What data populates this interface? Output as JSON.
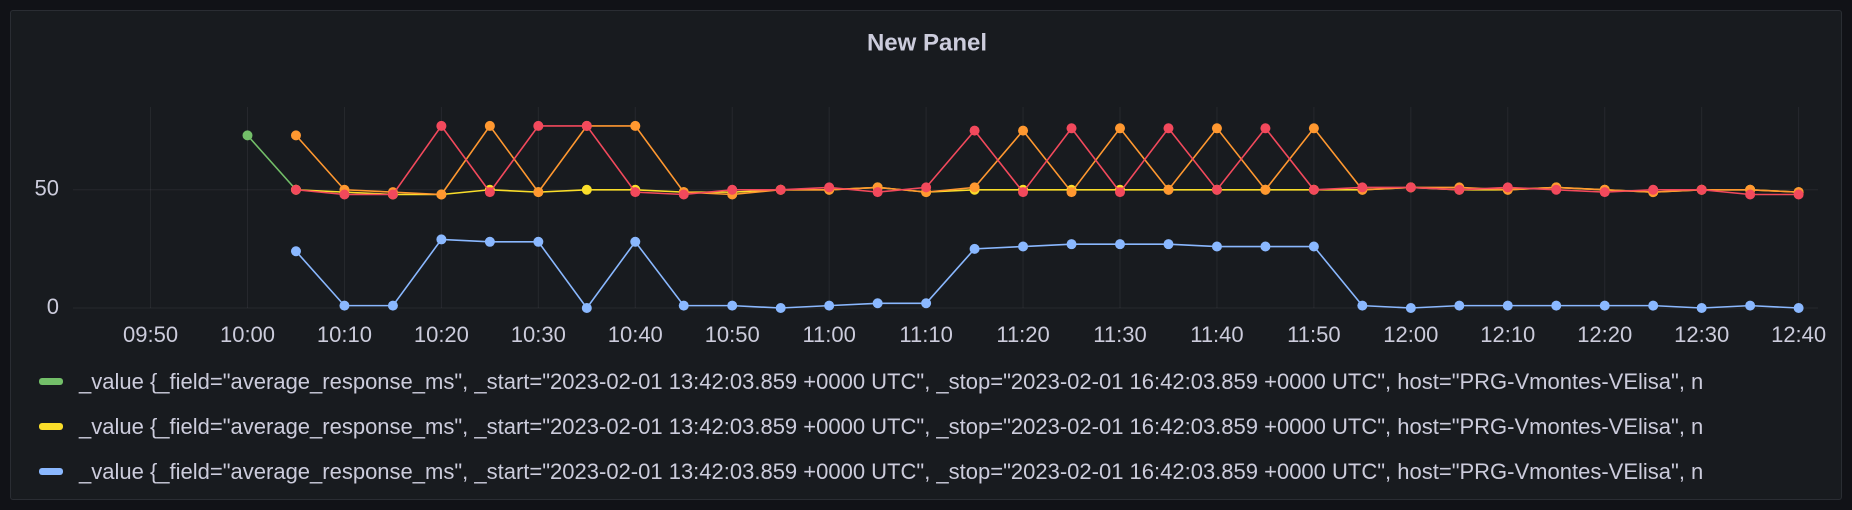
{
  "chart_data": {
    "type": "line",
    "title": "New Panel",
    "x": [
      "10:00",
      "10:05",
      "10:10",
      "10:15",
      "10:20",
      "10:25",
      "10:30",
      "10:35",
      "10:40",
      "10:45",
      "10:50",
      "10:55",
      "11:00",
      "11:05",
      "11:10",
      "11:15",
      "11:20",
      "11:25",
      "11:30",
      "11:35",
      "11:40",
      "11:45",
      "11:50",
      "11:55",
      "12:00",
      "12:05",
      "12:10",
      "12:15",
      "12:20",
      "12:25",
      "12:30",
      "12:35",
      "12:40"
    ],
    "xlim": [
      "09:42",
      "12:42"
    ],
    "xticks": [
      "09:50",
      "10:00",
      "10:10",
      "10:20",
      "10:30",
      "10:40",
      "10:50",
      "11:00",
      "11:10",
      "11:20",
      "11:30",
      "11:40",
      "11:50",
      "12:00",
      "12:10",
      "12:20",
      "12:30",
      "12:40"
    ],
    "ylim": [
      0,
      85
    ],
    "yticks": [
      0,
      50
    ],
    "grid": true,
    "series": [
      {
        "name": "_value {_field=\"average_response_ms\", _start=\"2023-02-01 13:42:03.859 +0000 UTC\", _stop=\"2023-02-01 16:42:03.859 +0000 UTC\", host=\"PRG-Vmontes-VElisa\", n",
        "color": "#73bf69",
        "values": [
          73,
          50,
          null,
          null,
          null,
          null,
          null,
          null,
          null,
          null,
          null,
          null,
          null,
          null,
          null,
          null,
          null,
          null,
          null,
          null,
          null,
          null,
          null,
          null,
          null,
          null,
          null,
          null,
          null,
          null,
          null,
          null,
          null
        ]
      },
      {
        "name": "_value {_field=\"average_response_ms\", _start=\"2023-02-01 13:42:03.859 +0000 UTC\", _stop=\"2023-02-01 16:42:03.859 +0000 UTC\", host=\"PRG-Vmontes-VElisa\", n",
        "color": "#fade2a",
        "values": [
          null,
          50,
          49,
          48,
          48,
          50,
          49,
          50,
          50,
          49,
          49,
          50,
          50,
          51,
          49,
          50,
          50,
          50,
          50,
          50,
          50,
          50,
          50,
          50,
          51,
          50,
          50,
          51,
          50,
          49,
          50,
          50,
          49
        ]
      },
      {
        "name": "_value {_field=\"average_response_ms\", _start=\"2023-02-01 13:42:03.859 +0000 UTC\", _stop=\"2023-02-01 16:42:03.859 +0000 UTC\", host=\"PRG-Vmontes-VElisa\", n",
        "color": "#8ab8ff",
        "values": [
          null,
          24,
          1,
          1,
          29,
          28,
          28,
          0,
          28,
          1,
          1,
          0,
          1,
          2,
          2,
          25,
          26,
          27,
          27,
          27,
          26,
          26,
          26,
          1,
          0,
          1,
          1,
          1,
          1,
          1,
          0,
          1,
          0
        ]
      },
      {
        "color": "#ff9830",
        "values": [
          null,
          73,
          50,
          49,
          48,
          77,
          49,
          77,
          77,
          49,
          48,
          50,
          50,
          51,
          49,
          51,
          75,
          49,
          76,
          50,
          76,
          50,
          76,
          50,
          51,
          51,
          50,
          51,
          50,
          49,
          50,
          50,
          49
        ]
      },
      {
        "color": "#f2495c",
        "values": [
          null,
          50,
          48,
          48,
          77,
          49,
          77,
          77,
          49,
          48,
          50,
          50,
          51,
          49,
          51,
          75,
          49,
          76,
          49,
          76,
          50,
          76,
          50,
          51,
          51,
          50,
          51,
          50,
          49,
          50,
          50,
          48,
          48
        ]
      }
    ]
  }
}
